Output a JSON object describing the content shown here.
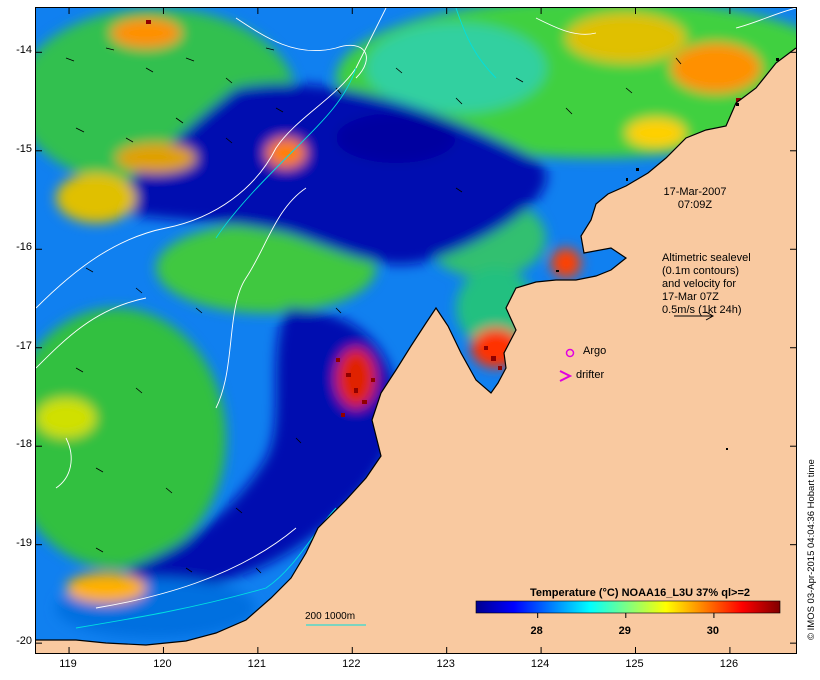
{
  "map": {
    "lat_ticks": [
      "-14",
      "-15",
      "-16",
      "-17",
      "-18",
      "-19",
      "-20"
    ],
    "lon_ticks": [
      "119",
      "120",
      "121",
      "122",
      "123",
      "124",
      "125",
      "126"
    ],
    "lat_range": [
      -20.1,
      -13.55
    ],
    "lon_range": [
      118.65,
      126.7
    ]
  },
  "annotations": {
    "date": "17-Mar-2007",
    "time": "07:09Z",
    "altimetry_lines": [
      "Altimetric sealevel",
      "(0.1m contours)",
      "and velocity for",
      "17-Mar 07Z",
      "0.5m/s (1kt 24h)"
    ]
  },
  "legend": {
    "argo_label": "Argo",
    "drifter_label": "drifter",
    "argo_color": "#e000e0",
    "drifter_color": "#e000e0"
  },
  "depth_contours": {
    "label": "200  1000m",
    "color": "#00e0e0"
  },
  "colorbar": {
    "title": "Temperature (°C) NOAA16_L3U 37% ql>=2",
    "ticks": [
      "28",
      "29",
      "30"
    ],
    "tick_values": [
      28,
      29,
      30
    ],
    "range": [
      27.3,
      30.75
    ],
    "colors": [
      "#00008f",
      "#0000ff",
      "#0080ff",
      "#00ffff",
      "#80ff80",
      "#ffff00",
      "#ff8000",
      "#ff0000",
      "#800000"
    ]
  },
  "credit": "© IMOS 03-Apr-2015 04:04:36 Hobart time",
  "colors": {
    "land": "#f9c9a0",
    "ocean_warm": "#30c040",
    "ocean_cold": "#00008f"
  }
}
